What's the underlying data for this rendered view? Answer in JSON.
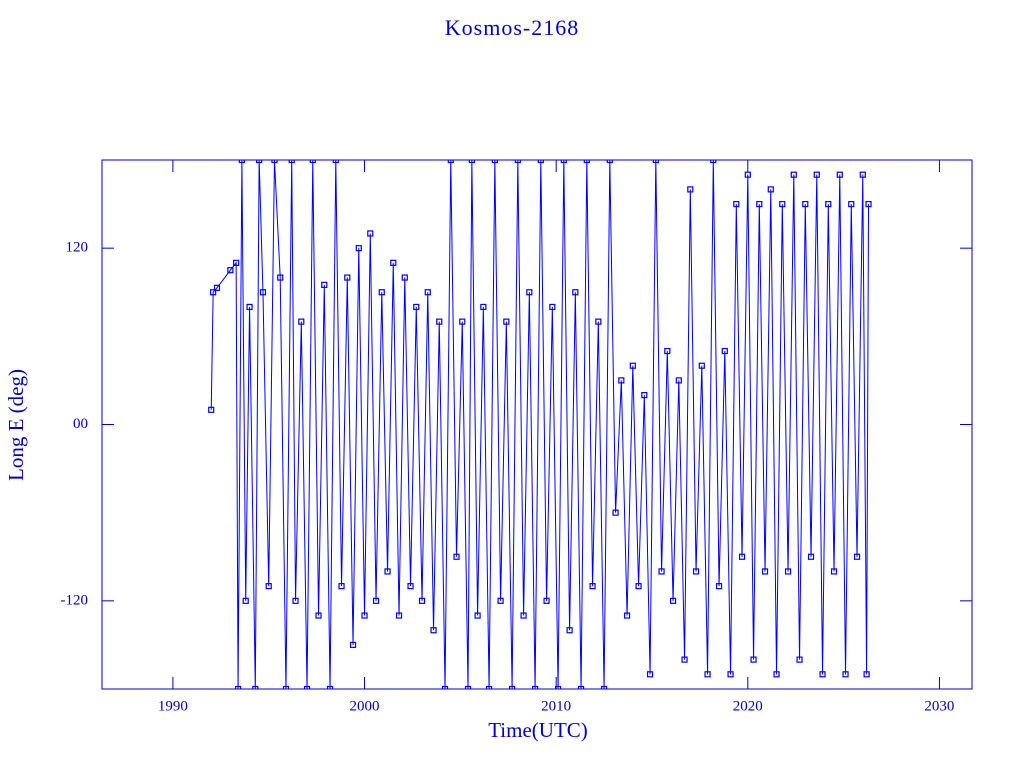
{
  "chart_data": {
    "type": "line",
    "title": "Kosmos-2168",
    "x_label": "Time(UTC)",
    "y_label": "Long E (deg)",
    "xlim": [
      1986.3,
      2031.7
    ],
    "ylim": [
      -180,
      180
    ],
    "xticks": [
      1990,
      2000,
      2010,
      2020,
      2030
    ],
    "yticks": [
      {
        "value": -120,
        "label": "-120"
      },
      {
        "value": 0,
        "label": "00"
      },
      120
    ],
    "series": [
      {
        "name": "Kosmos-2168",
        "color": "#0000ff",
        "x": [
          1992.0,
          1992.1,
          1992.3,
          1993.0,
          1993.3,
          1993.4,
          1993.6,
          1993.8,
          1994.0,
          1994.3,
          1994.5,
          1994.7,
          1995.0,
          1995.3,
          1995.6,
          1995.9,
          1996.2,
          1996.4,
          1996.7,
          1997.0,
          1997.3,
          1997.6,
          1997.9,
          1998.2,
          1998.5,
          1998.8,
          1999.1,
          1999.4,
          1999.7,
          2000.0,
          2000.3,
          2000.6,
          2000.9,
          2001.2,
          2001.5,
          2001.8,
          2002.1,
          2002.4,
          2002.7,
          2003.0,
          2003.3,
          2003.6,
          2003.9,
          2004.2,
          2004.5,
          2004.8,
          2005.1,
          2005.4,
          2005.6,
          2005.9,
          2006.2,
          2006.5,
          2006.8,
          2007.1,
          2007.4,
          2007.7,
          2008.0,
          2008.3,
          2008.6,
          2008.9,
          2009.2,
          2009.5,
          2009.8,
          2010.1,
          2010.4,
          2010.7,
          2011.0,
          2011.3,
          2011.6,
          2011.9,
          2012.2,
          2012.5,
          2012.8,
          2013.1,
          2013.4,
          2013.7,
          2014.0,
          2014.3,
          2014.6,
          2014.9,
          2015.2,
          2015.5,
          2015.8,
          2016.1,
          2016.4,
          2016.7,
          2017.0,
          2017.3,
          2017.6,
          2017.9,
          2018.2,
          2018.5,
          2018.8,
          2019.1,
          2019.4,
          2019.7,
          2020.0,
          2020.3,
          2020.6,
          2020.9,
          2021.2,
          2021.5,
          2021.8,
          2022.1,
          2022.4,
          2022.7,
          2023.0,
          2023.3,
          2023.6,
          2023.9,
          2024.2,
          2024.5,
          2024.8,
          2025.1,
          2025.4,
          2025.7,
          2026.0,
          2026.2,
          2026.3
        ],
        "values": [
          10,
          90,
          93,
          105,
          110,
          -180,
          180,
          -120,
          80,
          -180,
          180,
          90,
          -110,
          180,
          100,
          -180,
          180,
          -120,
          70,
          -180,
          180,
          -130,
          95,
          -180,
          180,
          -110,
          100,
          -150,
          120,
          -130,
          130,
          -120,
          90,
          -100,
          110,
          -130,
          100,
          -110,
          80,
          -120,
          90,
          -140,
          70,
          -180,
          180,
          -90,
          70,
          -180,
          180,
          -130,
          80,
          -180,
          180,
          -120,
          70,
          -180,
          180,
          -130,
          90,
          -180,
          180,
          -120,
          80,
          -180,
          180,
          -140,
          90,
          -180,
          180,
          -110,
          70,
          -180,
          180,
          -60,
          30,
          -130,
          40,
          -110,
          20,
          -170,
          180,
          -100,
          50,
          -120,
          30,
          -160,
          160,
          -100,
          40,
          -170,
          180,
          -110,
          50,
          -170,
          150,
          -90,
          170,
          -160,
          150,
          -100,
          160,
          -170,
          150,
          -100,
          170,
          -160,
          150,
          -90,
          170,
          -170,
          150,
          -100,
          170,
          -170,
          150,
          -90,
          170,
          -170,
          150
        ]
      }
    ]
  }
}
